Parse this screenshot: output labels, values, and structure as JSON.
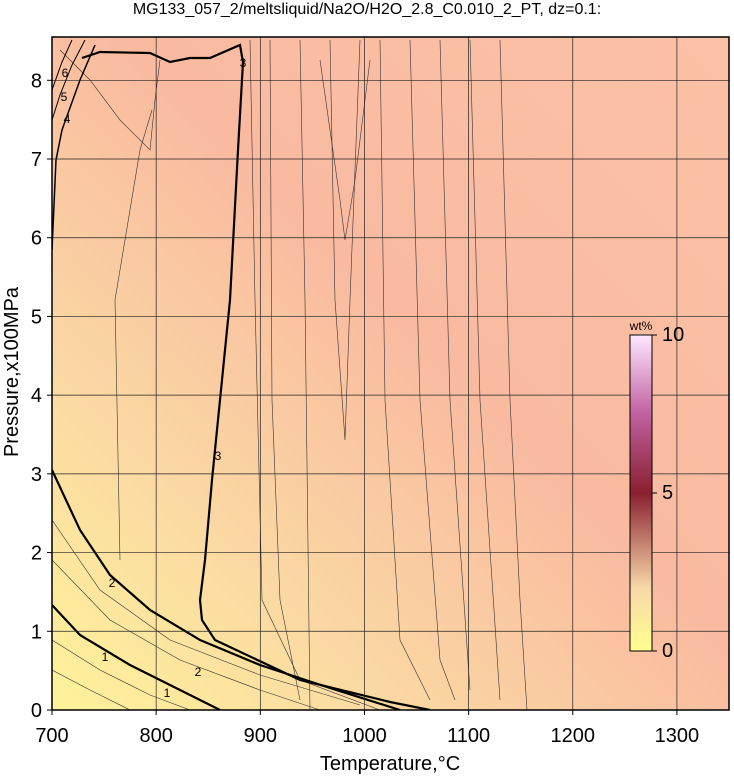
{
  "chart_data": {
    "type": "contour",
    "title": "MG133_057_2/meltsliquid/Na2O/H2O_2.8_C0.010_2_PT, dz=0.1:",
    "x_label": "Temperature,°C",
    "y_label": "Pressure,x100MPa",
    "xlim": [
      700,
      1350
    ],
    "xticks": [
      700,
      800,
      900,
      1000,
      1100,
      1200,
      1300
    ],
    "ylim": [
      0,
      8.55
    ],
    "yticks": [
      0,
      1,
      2,
      3,
      4,
      5,
      6,
      7,
      8
    ],
    "grid": true,
    "contours": [
      {
        "level": 1
      },
      {
        "level": 2
      },
      {
        "level": 3
      },
      {
        "level": 4
      },
      {
        "level": 5
      },
      {
        "level": 6
      }
    ],
    "colorbar": {
      "label": "wt%",
      "lim": [
        0,
        10
      ],
      "ticks": [
        0,
        5,
        10
      ]
    }
  }
}
